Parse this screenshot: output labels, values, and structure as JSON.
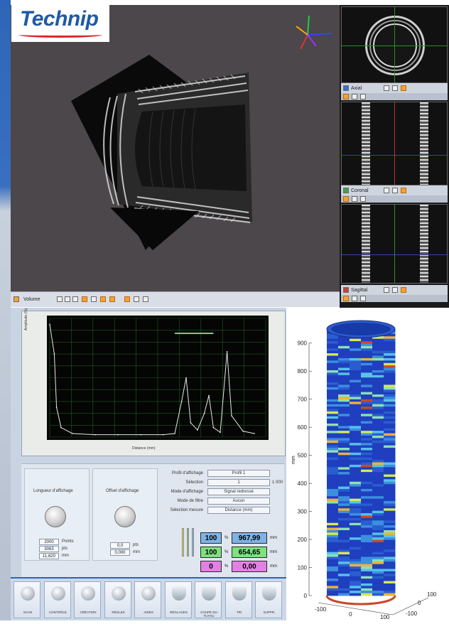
{
  "logo": {
    "text": "Technip"
  },
  "viewer3d": {
    "toolbar_label": "Volume"
  },
  "slice_views": [
    {
      "label": "Axial"
    },
    {
      "label": "Coronal"
    },
    {
      "label": "Sagittal"
    }
  ],
  "signal_plot": {
    "xlabel": "Distance (mm)",
    "ylabel": "Amplitude (%)"
  },
  "controls": {
    "gain_title": "Longueur d'affichage",
    "offset_title": "Offset d'affichage",
    "gain_field_1": "2000",
    "gain_unit_1": "Points",
    "gain_field_2": "3063",
    "gain_unit_2": "pts",
    "gain_field_3": "11,620",
    "gain_unit_3": "mm",
    "offset_field_1": "0,0",
    "offset_unit_1": "pts",
    "offset_field_2": "0,000",
    "offset_unit_2": "mm",
    "dropdowns": [
      {
        "label": "Profil d'affichage",
        "value": "Profil 1"
      },
      {
        "label": "Sélection",
        "value": "1"
      },
      {
        "label": "Mode d'affichage",
        "value": "Signal redressé"
      },
      {
        "label": "Mode de filtre",
        "value": "Aucun"
      },
      {
        "label": "Sélection mesure",
        "value": "Distance (mm)"
      }
    ],
    "extra_value": "1 000",
    "results": [
      {
        "left": "100",
        "right": "967,99",
        "unit": "mm",
        "color": "#7fb3e6"
      },
      {
        "left": "100",
        "right": "654,65",
        "unit": "mm",
        "color": "#7fe07f"
      },
      {
        "left": "0",
        "right": "0,00",
        "unit": "mm",
        "color": "#e57fe5"
      }
    ],
    "sep_symbol": "%"
  },
  "taskbar": [
    {
      "label": "SCAN",
      "icon": "gear-icon"
    },
    {
      "label": "CONTRÔLE",
      "icon": "gear-icon"
    },
    {
      "label": "CRÉATION",
      "icon": "gear-icon"
    },
    {
      "label": "RÉGLES",
      "icon": "gear-icon"
    },
    {
      "label": "AIDES",
      "icon": "gear-icon"
    },
    {
      "label": "RÉGLAGES",
      "icon": "pipe-icon"
    },
    {
      "label": "COUPE DU TUYAU",
      "icon": "pipe-icon"
    },
    {
      "label": "TRI",
      "icon": "pipe-icon"
    },
    {
      "label": "SUPPR.",
      "icon": "pipe-icon"
    }
  ],
  "chart_data": [
    {
      "type": "line",
      "title": "",
      "xlabel": "Distance (mm)",
      "ylabel": "Amplitude (%)",
      "x": [
        0,
        2,
        3,
        5,
        10,
        20,
        30,
        40,
        50,
        55,
        58,
        60,
        62,
        65,
        68,
        70,
        72,
        75,
        78,
        80,
        85,
        90
      ],
      "series": [
        {
          "values": [
            95,
            70,
            25,
            8,
            3,
            2,
            2,
            2,
            2,
            3,
            30,
            50,
            12,
            6,
            20,
            35,
            8,
            4,
            72,
            18,
            5,
            3
          ]
        }
      ],
      "grid": true
    },
    {
      "type": "heatmap",
      "title": "",
      "ylabel": "mm",
      "zlim": [
        0,
        950
      ],
      "z_ticks": [
        "0",
        "100",
        "200",
        "300",
        "400",
        "500",
        "600",
        "700",
        "800",
        "900"
      ],
      "x_ticks": [
        "-100",
        "0",
        "100"
      ],
      "y_ticks": [
        "-100",
        "0",
        "100"
      ]
    }
  ]
}
